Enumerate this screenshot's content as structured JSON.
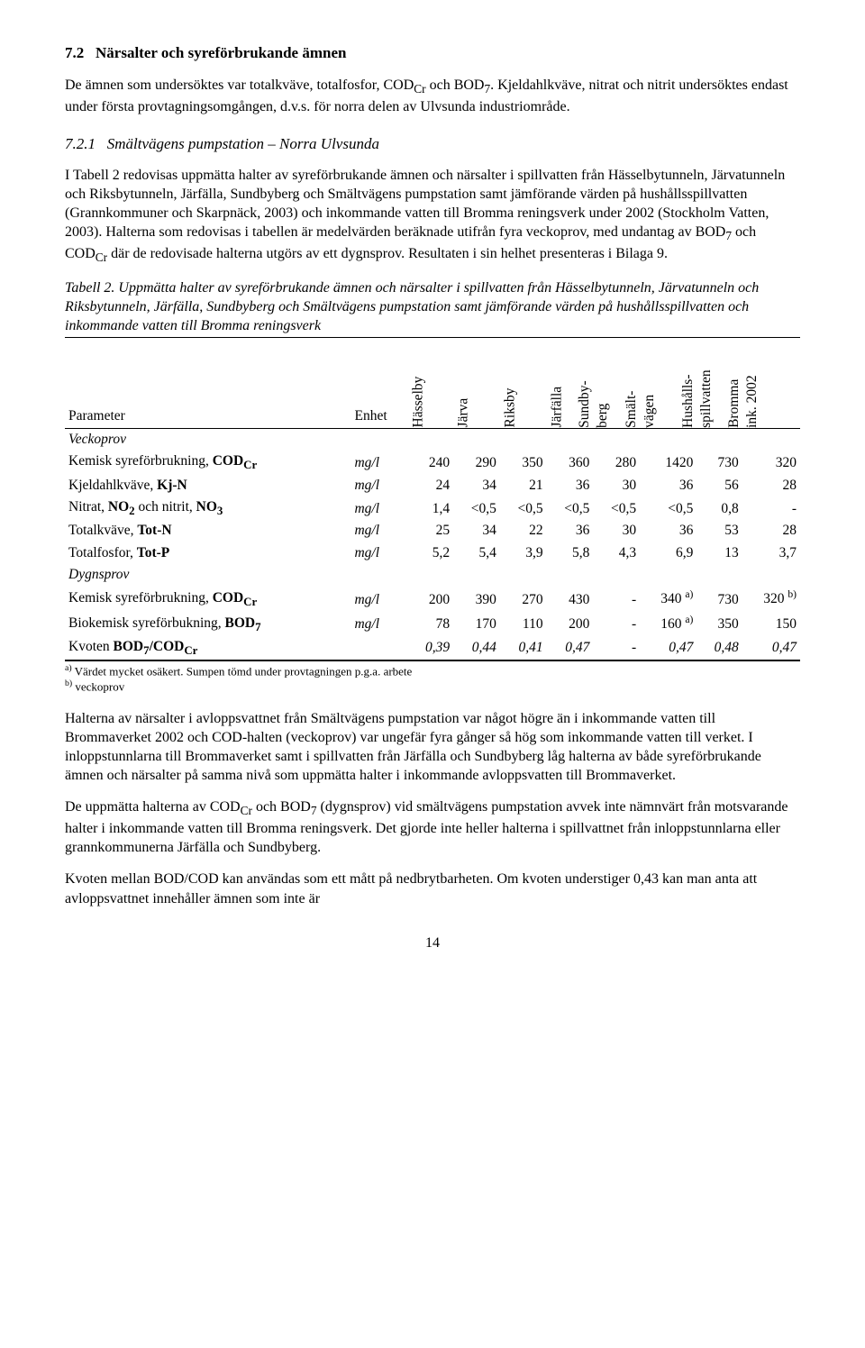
{
  "section": {
    "number": "7.2",
    "title": "Närsalter och syreförbrukande ämnen"
  },
  "intro_para": "De ämnen som undersöktes var totalkväve, totalfosfor, CODCr och BOD7. Kjeldahlkväve, nitrat och nitrit undersöktes endast under första provtagningsomgången, d.v.s. för norra delen av Ulvsunda industriområde.",
  "subsection": {
    "number": "7.2.1",
    "title": "Smältvägens pumpstation – Norra Ulvsunda"
  },
  "body_para_1": "I Tabell 2 redovisas uppmätta halter av syreförbrukande ämnen och närsalter i spillvatten från Hässelbytunneln, Järvatunneln och Riksbytunneln, Järfälla, Sundbyberg och Smältvägens pumpstation samt jämförande värden på hushållsspillvatten (Grannkommuner och Skarpnäck, 2003) och inkommande vatten till Bromma reningsverk under 2002 (Stockholm Vatten, 2003). Halterna som redovisas i tabellen är medelvärden beräknade utifrån fyra veckoprov, med undantag av BOD7 och CODCr där de redovisade halterna utgörs av ett dygnsprov. Resultaten i sin helhet presenteras i Bilaga 9.",
  "table_caption": "Tabell 2. Uppmätta halter av syreförbrukande ämnen och närsalter i spillvatten från Hässelbytunneln, Järvatunneln och Riksbytunneln, Järfälla, Sundbyberg och Smältvägens pumpstation samt jämförande värden på hushållsspillvatten och inkommande vatten till Bromma reningsverk",
  "table": {
    "header": {
      "parameter": "Parameter",
      "unit": "Enhet",
      "columns": [
        "Hässelby",
        "Järva",
        "Riksby",
        "Järfälla",
        "Sundby-\nberg",
        "Smält-\nvägen",
        "Hushålls-\nspillvatten",
        "Bromma\nink. 2002"
      ]
    },
    "groups": [
      {
        "label": "Veckoprov",
        "rows": [
          {
            "param_html": "Kemisk syreförbrukning, <b>COD<sub>Cr</sub></b>",
            "unit": "mg/l",
            "vals": [
              "240",
              "290",
              "350",
              "360",
              "280",
              "1420",
              "730",
              "320"
            ]
          },
          {
            "param_html": "Kjeldahlkväve, <b>Kj-N</b>",
            "unit": "mg/l",
            "vals": [
              "24",
              "34",
              "21",
              "36",
              "30",
              "36",
              "56",
              "28"
            ]
          },
          {
            "param_html": "Nitrat, <b>NO<sub>2</sub></b> och nitrit, <b>NO<sub>3</sub></b>",
            "unit": "mg/l",
            "vals": [
              "1,4",
              "<0,5",
              "<0,5",
              "<0,5",
              "<0,5",
              "<0,5",
              "0,8",
              "-"
            ]
          },
          {
            "param_html": "Totalkväve, <b>Tot-N</b>",
            "unit": "mg/l",
            "vals": [
              "25",
              "34",
              "22",
              "36",
              "30",
              "36",
              "53",
              "28"
            ]
          },
          {
            "param_html": "Totalfosfor, <b>Tot-P</b>",
            "unit": "mg/l",
            "vals": [
              "5,2",
              "5,4",
              "3,9",
              "5,8",
              "4,3",
              "6,9",
              "13",
              "3,7"
            ]
          }
        ]
      },
      {
        "label": "Dygnsprov",
        "rows": [
          {
            "param_html": "Kemisk syreförbrukning, <b>COD<sub>Cr</sub></b>",
            "unit": "mg/l",
            "vals": [
              "200",
              "390",
              "270",
              "430",
              "-",
              "340 <sup>a)</sup>",
              "730",
              "320 <sup>b)</sup>"
            ]
          },
          {
            "param_html": "Biokemisk syreförbukning, <b>BOD<sub>7</sub></b>",
            "unit": "mg/l",
            "vals": [
              "78",
              "170",
              "110",
              "200",
              "-",
              "160 <sup>a)</sup>",
              "350",
              "150"
            ]
          },
          {
            "param_html": "Kvoten <b>BOD<sub>7</sub>/COD<sub>Cr</sub></b>",
            "unit": "",
            "vals": [
              "0,39",
              "0,44",
              "0,41",
              "0,47",
              "-",
              "0,47",
              "0,48",
              "0,47"
            ],
            "italic_vals": true
          }
        ]
      }
    ],
    "footnotes": [
      "a) Värdet mycket osäkert. Sumpen tömd under provtagningen p.g.a. arbete",
      "b) veckoprov"
    ]
  },
  "body_para_2": "Halterna av närsalter i avloppsvattnet från Smältvägens pumpstation var något högre än i inkommande vatten till Brommaverket 2002 och COD-halten (veckoprov) var ungefär fyra gånger så hög som inkommande vatten till verket. I inloppstunnlarna till Brommaverket samt i spillvatten från Järfälla och Sundbyberg låg halterna av både syreförbrukande ämnen och närsalter på samma nivå som uppmätta halter i inkommande avloppsvatten till Brommaverket.",
  "body_para_3": "De uppmätta halterna av CODCr och BOD7 (dygnsprov) vid smältvägens pumpstation avvek inte nämnvärt från motsvarande halter i inkommande vatten till Bromma reningsverk. Det gjorde inte heller halterna i spillvattnet från inloppstunnlarna eller grannkommunerna Järfälla och Sundbyberg.",
  "body_para_4": "Kvoten mellan BOD/COD kan användas som ett mått på nedbrytbarheten. Om kvoten understiger 0,43 kan man anta att avloppsvattnet innehåller ämnen som inte är",
  "page_number": "14"
}
